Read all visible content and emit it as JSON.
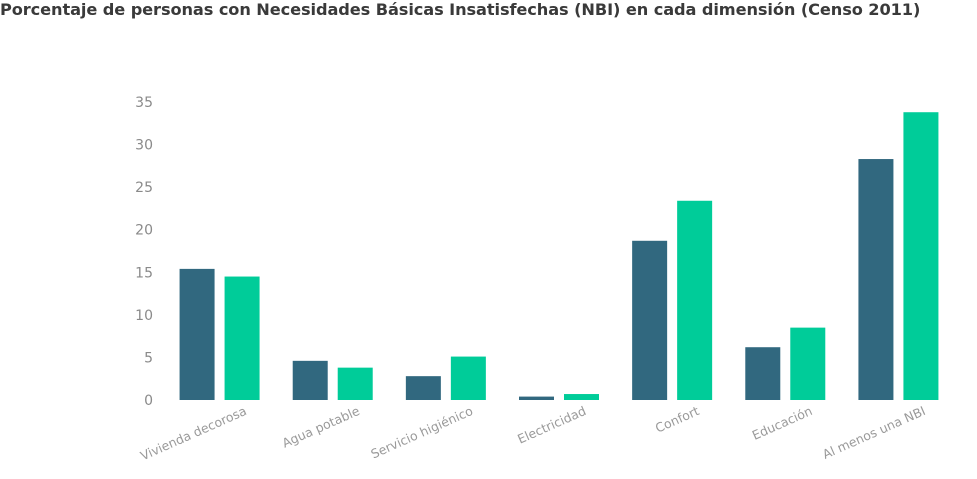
{
  "colors": {
    "series_1": "#31687f",
    "series_2": "#00cc99",
    "title_text": "#3a3a3a",
    "tick_text": "#8a8a8a"
  },
  "chart_data": {
    "type": "bar",
    "title": "Porcentaje de personas con Necesidades Básicas Insatisfechas (NBI) en cada dimensión (Censo 2011)",
    "xlabel": "",
    "ylabel": "",
    "ylim": [
      0,
      35
    ],
    "yticks": [
      "0",
      "5",
      "10",
      "15",
      "20",
      "25",
      "30",
      "35"
    ],
    "grid": false,
    "legend": "none",
    "categories": [
      "Vivienda decorosa",
      "Agua potable",
      "Servicio higiénico",
      "Electricidad",
      "Confort",
      "Educación",
      "Al menos una NBI"
    ],
    "series": [
      {
        "values": [
          15.4,
          4.6,
          2.8,
          0.4,
          18.7,
          6.2,
          28.3
        ]
      },
      {
        "values": [
          14.5,
          3.8,
          5.1,
          0.7,
          23.4,
          8.5,
          33.8
        ]
      }
    ]
  }
}
